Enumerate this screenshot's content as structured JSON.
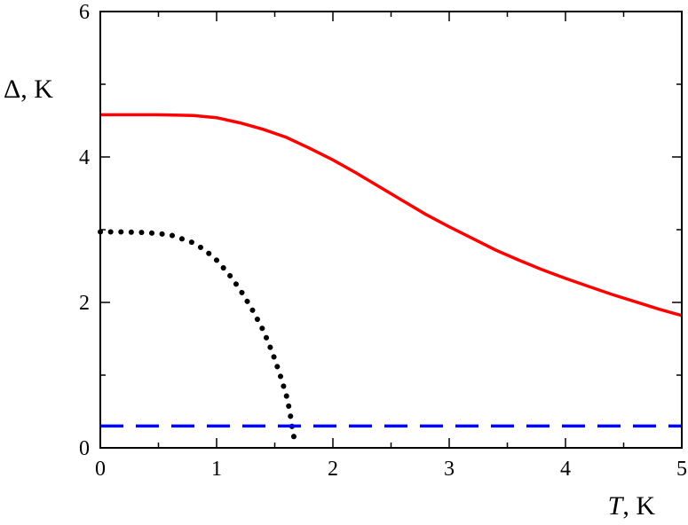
{
  "chart_data": {
    "type": "line",
    "title": "",
    "xlabel_symbol": "T",
    "xlabel_unit": ", K",
    "ylabel": "Δ, K",
    "xlim": [
      0,
      5
    ],
    "ylim": [
      0,
      6
    ],
    "x_ticks": [
      0,
      1,
      2,
      3,
      4,
      5
    ],
    "y_ticks": [
      0,
      2,
      4,
      6
    ],
    "grid": false,
    "series": [
      {
        "style": "solid",
        "color": "#ff0000",
        "x": [
          0,
          0.5,
          0.8,
          1.0,
          1.2,
          1.4,
          1.6,
          1.8,
          2.0,
          2.2,
          2.4,
          2.6,
          2.8,
          3.0,
          3.2,
          3.4,
          3.6,
          3.8,
          4.0,
          4.2,
          4.4,
          4.6,
          4.8,
          5.0
        ],
        "y": [
          4.58,
          4.58,
          4.57,
          4.54,
          4.47,
          4.38,
          4.27,
          4.12,
          3.96,
          3.78,
          3.59,
          3.4,
          3.21,
          3.04,
          2.88,
          2.72,
          2.58,
          2.45,
          2.33,
          2.22,
          2.11,
          2.01,
          1.91,
          1.82
        ]
      },
      {
        "style": "dotted",
        "color": "#000000",
        "x": [
          0,
          0.2,
          0.4,
          0.6,
          0.8,
          0.9,
          1.0,
          1.1,
          1.2,
          1.3,
          1.4,
          1.45,
          1.5,
          1.55,
          1.6,
          1.63,
          1.65,
          1.67
        ],
        "y": [
          2.97,
          2.97,
          2.96,
          2.93,
          2.82,
          2.72,
          2.58,
          2.4,
          2.18,
          1.92,
          1.62,
          1.43,
          1.22,
          0.98,
          0.72,
          0.5,
          0.28,
          0.1
        ]
      },
      {
        "style": "dashed",
        "color": "#0000ff",
        "x": [
          0,
          5
        ],
        "y": [
          0.3,
          0.3
        ]
      }
    ]
  }
}
